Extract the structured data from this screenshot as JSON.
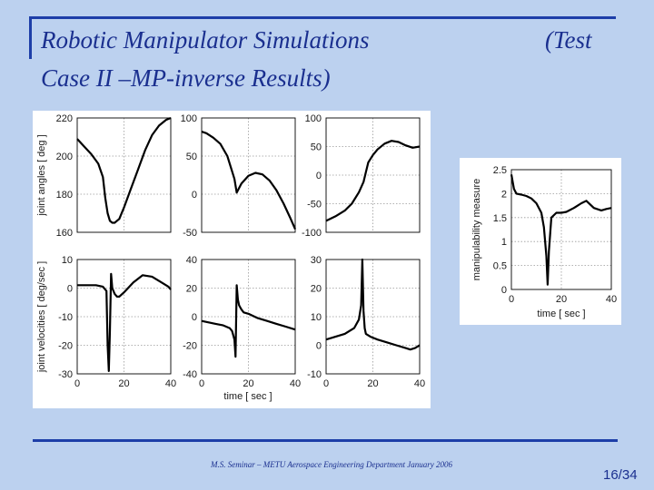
{
  "slide": {
    "title_line1": "Robotic Manipulator Simulations",
    "title_line2": "Case II –MP-inverse Results)",
    "title_suffix": "(Test",
    "footer": "M.S. Seminar – METU Aerospace Engineering Department January 2006",
    "page": "16/34",
    "colors": {
      "background": "#bcd1ef",
      "accent": "#1d3ea8",
      "text": "#1a2f8f"
    }
  },
  "chart_data": [
    {
      "type": "line",
      "grid": true,
      "xlim": [
        0,
        40
      ],
      "ylim": [
        160,
        220
      ],
      "yticks": [
        160,
        180,
        200,
        220
      ],
      "ylabel": "joint angles [ deg ]",
      "series": [
        {
          "x": [
            0,
            3,
            6,
            9,
            11,
            12,
            13,
            14,
            15,
            16,
            18,
            20,
            23,
            26,
            29,
            32,
            35,
            38,
            40
          ],
          "values": [
            209,
            205,
            201,
            196,
            189,
            178,
            170,
            166,
            165,
            165,
            167,
            173,
            183,
            193,
            203,
            211,
            216,
            219,
            220
          ]
        }
      ]
    },
    {
      "type": "line",
      "grid": true,
      "xlim": [
        0,
        40
      ],
      "ylim": [
        -50,
        100
      ],
      "yticks": [
        -50,
        0,
        50,
        100
      ],
      "series": [
        {
          "x": [
            0,
            2,
            5,
            8,
            11,
            14,
            15,
            16,
            17,
            20,
            23,
            26,
            29,
            32,
            35,
            38,
            40
          ],
          "values": [
            82,
            80,
            74,
            66,
            50,
            20,
            2,
            8,
            14,
            24,
            28,
            26,
            18,
            5,
            -12,
            -32,
            -46
          ]
        }
      ]
    },
    {
      "type": "line",
      "grid": true,
      "xlim": [
        0,
        40
      ],
      "ylim": [
        -100,
        100
      ],
      "yticks": [
        -100,
        -50,
        0,
        50,
        100
      ],
      "series": [
        {
          "x": [
            0,
            4,
            8,
            11,
            14,
            16,
            17,
            18,
            20,
            22,
            25,
            28,
            31,
            34,
            37,
            40
          ],
          "values": [
            -80,
            -72,
            -62,
            -50,
            -30,
            -12,
            5,
            22,
            35,
            45,
            55,
            60,
            58,
            52,
            48,
            50
          ]
        }
      ]
    },
    {
      "type": "line",
      "grid": true,
      "xlim": [
        0,
        40
      ],
      "ylim": [
        -30,
        10
      ],
      "yticks": [
        -30,
        -20,
        -10,
        0,
        10
      ],
      "ylabel": "joint velocities [ deg/sec ]",
      "series": [
        {
          "x": [
            0,
            4,
            8,
            11,
            12.5,
            13,
            13.5,
            14,
            14.5,
            15,
            16,
            17,
            18,
            20,
            24,
            28,
            32,
            36,
            39,
            40
          ],
          "values": [
            1,
            1,
            1,
            0.5,
            -1,
            -20,
            -29,
            -15,
            5,
            0,
            -2,
            -3,
            -3,
            -1.5,
            2,
            4.5,
            4,
            2,
            0.5,
            -0.5
          ]
        }
      ]
    },
    {
      "type": "line",
      "grid": true,
      "xlim": [
        0,
        40
      ],
      "ylim": [
        -40,
        40
      ],
      "yticks": [
        -40,
        -20,
        0,
        20,
        40
      ],
      "series": [
        {
          "x": [
            0,
            3,
            6,
            9,
            12,
            13,
            14,
            14.5,
            15,
            15.5,
            16,
            17,
            18,
            20,
            24,
            28,
            32,
            36,
            40
          ],
          "values": [
            -3,
            -4,
            -5,
            -6,
            -8,
            -10,
            -16,
            -28,
            22,
            12,
            8,
            5,
            3,
            2,
            -1,
            -3,
            -5,
            -7,
            -9
          ]
        }
      ]
    },
    {
      "type": "line",
      "grid": true,
      "xlim": [
        0,
        40
      ],
      "ylim": [
        -10,
        30
      ],
      "yticks": [
        -10,
        0,
        10,
        20,
        30
      ],
      "series": [
        {
          "x": [
            0,
            4,
            8,
            12,
            14,
            15,
            15.5,
            16,
            16.5,
            17,
            19,
            22,
            26,
            30,
            34,
            36,
            38,
            40
          ],
          "values": [
            2,
            3,
            4,
            6,
            9,
            14,
            30,
            12,
            6,
            4,
            3,
            2,
            1,
            0,
            -1,
            -1.5,
            -1,
            0
          ]
        }
      ]
    },
    {
      "type": "line",
      "grid": true,
      "xlim": [
        0,
        40
      ],
      "ylim": [
        0,
        2.5
      ],
      "yticks": [
        0,
        0.5,
        1,
        1.5,
        2,
        2.5
      ],
      "xticks": [
        0,
        20,
        40
      ],
      "xlabel": "time   [ sec ]",
      "ylabel": "manipulability measure",
      "series": [
        {
          "x": [
            0,
            1,
            2,
            4,
            6,
            8,
            10,
            12,
            13,
            14,
            14.5,
            15,
            16,
            18,
            20,
            22,
            25,
            28,
            30,
            33,
            36,
            38,
            40
          ],
          "values": [
            2.4,
            2.1,
            2.0,
            1.98,
            1.95,
            1.9,
            1.8,
            1.6,
            1.3,
            0.7,
            0.1,
            0.8,
            1.5,
            1.6,
            1.6,
            1.62,
            1.7,
            1.8,
            1.85,
            1.7,
            1.65,
            1.68,
            1.7
          ]
        }
      ]
    }
  ],
  "shared_axes": {
    "xticks": [
      0,
      20,
      40
    ],
    "xlabel": "time   [ sec ]"
  }
}
